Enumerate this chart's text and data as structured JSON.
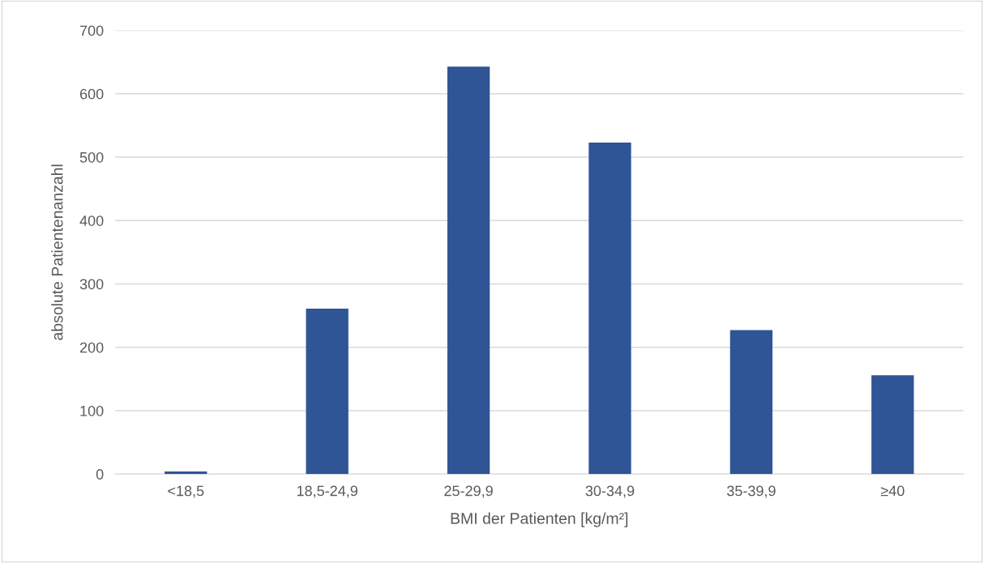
{
  "chart_data": {
    "type": "bar",
    "xlabel": "BMI der Patienten [kg/m²]",
    "ylabel": "absolute Patientenanzahl",
    "categories": [
      "<18,5",
      "18,5-24,9",
      "25-29,9",
      "30-34,9",
      "35-39,9",
      "≥40"
    ],
    "values": [
      4,
      261,
      643,
      523,
      227,
      156
    ],
    "color": "#2f5597",
    "ylim": [
      0,
      700
    ],
    "yticks": [
      0,
      100,
      200,
      300,
      400,
      500,
      600,
      700
    ],
    "grid": "y"
  }
}
